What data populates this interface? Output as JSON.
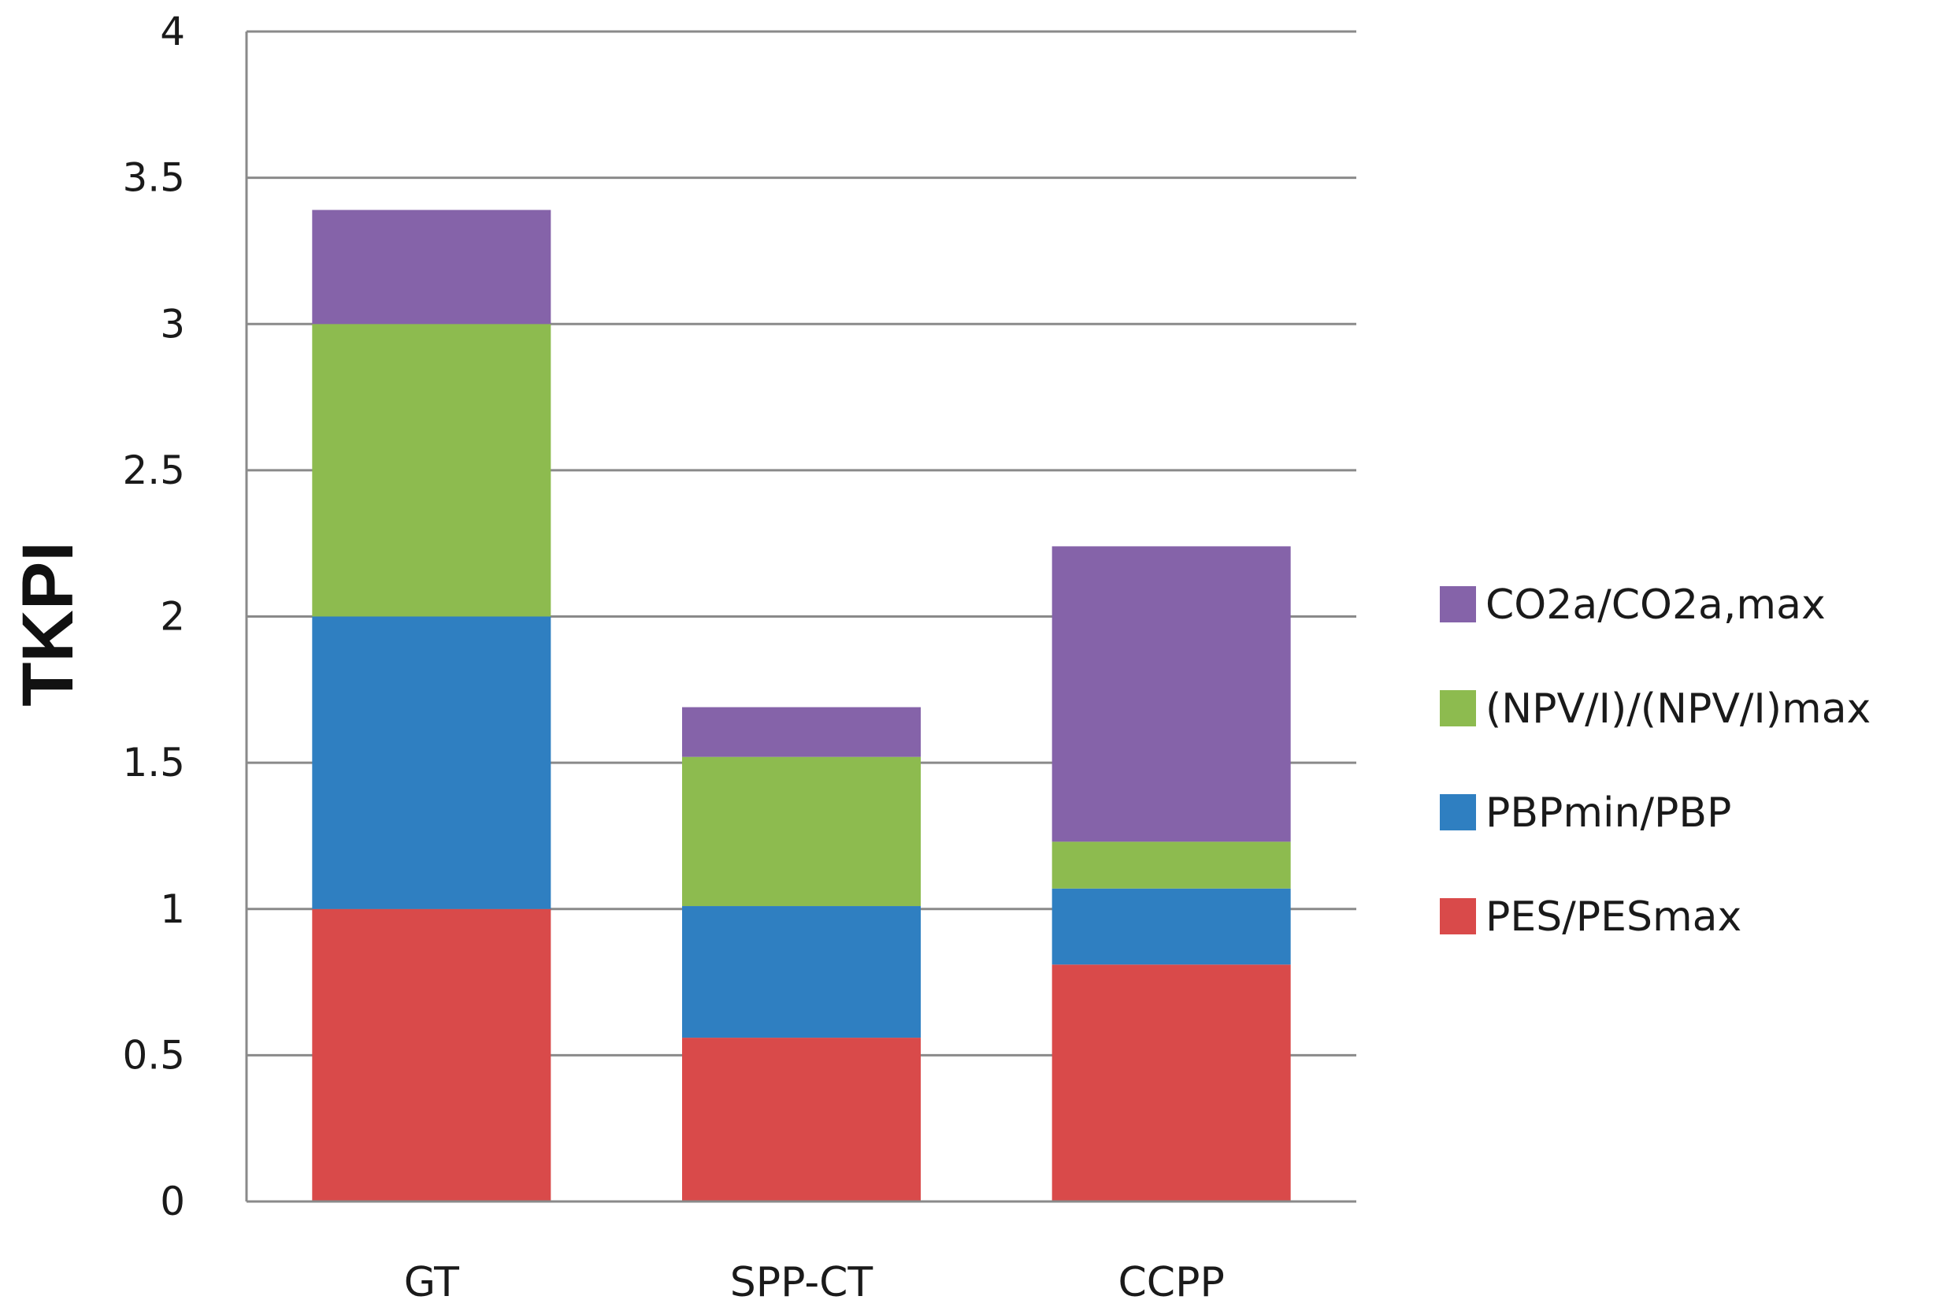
{
  "chart_data": {
    "type": "bar",
    "stacked": true,
    "title": "",
    "xlabel": "",
    "ylabel": "TKPI",
    "ylim": [
      0,
      4
    ],
    "yticks": [
      0,
      0.5,
      1,
      1.5,
      2,
      2.5,
      3,
      3.5,
      4
    ],
    "ytick_labels": [
      "0",
      "0.5",
      "1",
      "1.5",
      "2",
      "2.5",
      "3",
      "3.5",
      "4"
    ],
    "grid": true,
    "legend_position": "right",
    "categories": [
      "GT",
      "SPP-CT",
      "CCPP"
    ],
    "series": [
      {
        "name": "PES/PESmax",
        "color": "#d94a4a",
        "values": [
          1.0,
          0.56,
          0.81
        ]
      },
      {
        "name": "PBPmin/PBP",
        "color": "#2f7fc1",
        "values": [
          1.0,
          0.45,
          0.26
        ]
      },
      {
        "name": "(NPV/I)/(NPV/I)max",
        "color": "#8dbb4f",
        "values": [
          1.0,
          0.51,
          0.16
        ]
      },
      {
        "name": "CO2a/CO2a,max",
        "color": "#8563a9",
        "values": [
          0.39,
          0.17,
          1.01
        ]
      }
    ]
  }
}
